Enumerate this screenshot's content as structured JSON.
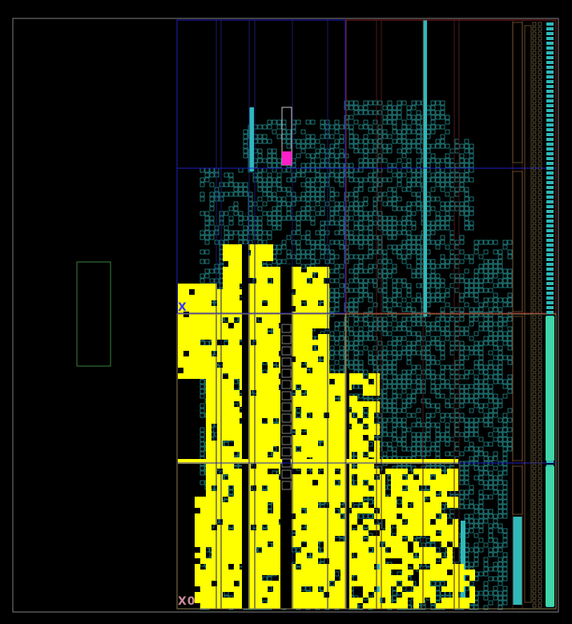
{
  "view": {
    "background": "#000000",
    "outline_color": "#7f7f7f"
  },
  "regions": {
    "clock_region_x0y1_label": "X",
    "clock_region_x1y1_label": "",
    "clock_region_x0y0_label": "X0",
    "blue_color": "#2020c0",
    "red_color": "#8a1f1f",
    "green_color": "#3d7f3d",
    "tan_color": "#8a7a50"
  },
  "placement": {
    "logic_color": "#ffff00",
    "routing_color": "#2fb9b9",
    "highlight_color": "#ff1fc8"
  }
}
